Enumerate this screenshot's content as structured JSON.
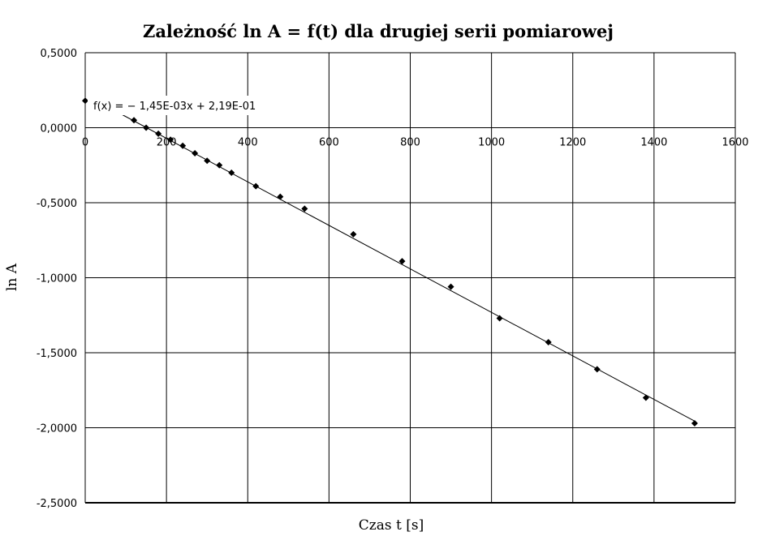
{
  "chart_data": {
    "type": "scatter",
    "title": "Zależność ln A = f(t) dla drugiej serii pomiarowej",
    "xlabel": "Czas t [s]",
    "ylabel": "ln A",
    "xlim": [
      0,
      1600
    ],
    "ylim": [
      -2.5,
      0.5
    ],
    "x_ticks": [
      0,
      200,
      400,
      600,
      800,
      1000,
      1200,
      1400,
      1600
    ],
    "y_ticks": [
      0.5,
      0,
      -0.5,
      -1,
      -1.5,
      -2,
      -2.5
    ],
    "x_tick_labels": [
      "0",
      "200",
      "400",
      "600",
      "800",
      "1000",
      "1200",
      "1400",
      "1600"
    ],
    "y_tick_labels": [
      "0,5000",
      "0,0000",
      "-0,5000",
      "-1,0000",
      "-1,5000",
      "-2,0000",
      "-2,5000"
    ],
    "grid": true,
    "points": [
      {
        "x": 0,
        "y": 0.18
      },
      {
        "x": 120,
        "y": 0.05
      },
      {
        "x": 150,
        "y": 0.0
      },
      {
        "x": 180,
        "y": -0.04
      },
      {
        "x": 210,
        "y": -0.08
      },
      {
        "x": 240,
        "y": -0.12
      },
      {
        "x": 270,
        "y": -0.17
      },
      {
        "x": 300,
        "y": -0.22
      },
      {
        "x": 330,
        "y": -0.25
      },
      {
        "x": 360,
        "y": -0.3
      },
      {
        "x": 420,
        "y": -0.39
      },
      {
        "x": 480,
        "y": -0.46
      },
      {
        "x": 540,
        "y": -0.54
      },
      {
        "x": 660,
        "y": -0.71
      },
      {
        "x": 780,
        "y": -0.89
      },
      {
        "x": 900,
        "y": -1.06
      },
      {
        "x": 1020,
        "y": -1.27
      },
      {
        "x": 1140,
        "y": -1.43
      },
      {
        "x": 1260,
        "y": -1.61
      },
      {
        "x": 1380,
        "y": -1.8
      },
      {
        "x": 1500,
        "y": -1.97
      }
    ],
    "trendline": {
      "slope": -0.00145,
      "intercept": 0.219,
      "x_range": [
        90,
        1500
      ],
      "label": "f(x) = − 1,45E-03x + 2,19E-01"
    },
    "colors": {
      "points": "#000000",
      "grid": "#000000",
      "trendline": "#000000"
    }
  }
}
